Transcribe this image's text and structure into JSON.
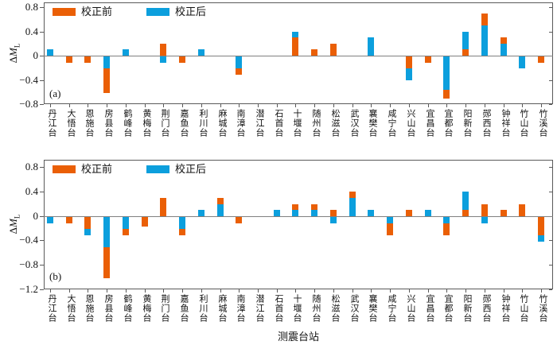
{
  "figure": {
    "xlabel": "测震台站",
    "ylabel": {
      "prefix": "Δ",
      "symbol": "M",
      "subscript": "L"
    },
    "legend": {
      "before_label": "校正前",
      "after_label": "校正后"
    },
    "colors": {
      "before": "#ea5f06",
      "after": "#0c9fdd",
      "axis": "#5a5a5a",
      "zero_line": "#808080"
    }
  },
  "chart_data": [
    {
      "type": "bar",
      "panel": "(a)",
      "ylabel": "ΔM_L",
      "ylim": [
        -0.8,
        0.88
      ],
      "grid": false,
      "legend_position": "top-left-inside",
      "yticks": [
        {
          "label": "0.8",
          "value": 0.8
        },
        {
          "label": "0.4",
          "value": 0.4
        },
        {
          "label": "0",
          "value": 0
        },
        {
          "label": "−0.4",
          "value": -0.4
        },
        {
          "label": "−0.8",
          "value": -0.8
        }
      ],
      "categories": [
        "丹江台",
        "大悟台",
        "恩施台",
        "房县台",
        "鹤峰台",
        "黄梅台",
        "荆门台",
        "嘉鱼台",
        "利川台",
        "麻城台",
        "南漳台",
        "潜江台",
        "石首台",
        "十堰台",
        "随州台",
        "松滋台",
        "武汉台",
        "襄樊台",
        "咸宁台",
        "兴山台",
        "宜昌台",
        "宜都台",
        "阳新台",
        "郧西台",
        "钟祥台",
        "竹山台",
        "竹溪台"
      ],
      "series": [
        {
          "name": "校正前",
          "color_key": "before",
          "values": [
            null,
            -0.1,
            -0.1,
            -0.6,
            null,
            null,
            0.2,
            -0.1,
            null,
            null,
            -0.3,
            null,
            null,
            0.3,
            0.1,
            0.2,
            null,
            null,
            null,
            -0.2,
            -0.1,
            -0.7,
            0.1,
            0.7,
            0.3,
            null,
            -0.1
          ]
        },
        {
          "name": "校正后",
          "color_key": "after",
          "values": [
            0.1,
            null,
            null,
            -0.2,
            0.1,
            null,
            -0.1,
            null,
            0.1,
            null,
            -0.2,
            null,
            null,
            0.4,
            null,
            null,
            null,
            0.3,
            null,
            -0.4,
            null,
            -0.55,
            0.4,
            0.5,
            0.2,
            -0.2,
            null
          ]
        }
      ]
    },
    {
      "type": "bar",
      "panel": "(b)",
      "ylabel": "ΔM_L",
      "ylim": [
        -1.2,
        0.92
      ],
      "grid": false,
      "legend_position": "top-left-inside",
      "yticks": [
        {
          "label": "0.8",
          "value": 0.8
        },
        {
          "label": "0.4",
          "value": 0.4
        },
        {
          "label": "0",
          "value": 0
        },
        {
          "label": "−0.4",
          "value": -0.4
        },
        {
          "label": "−0.8",
          "value": -0.8
        },
        {
          "label": "−1.2",
          "value": -1.2
        }
      ],
      "categories": [
        "丹江台",
        "大悟台",
        "恩施台",
        "房县台",
        "鹤峰台",
        "黄梅台",
        "荆门台",
        "嘉鱼台",
        "利川台",
        "麻城台",
        "南漳台",
        "潜江台",
        "石首台",
        "十堰台",
        "随州台",
        "松滋台",
        "武汉台",
        "襄樊台",
        "咸宁台",
        "兴山台",
        "宜昌台",
        "宜都台",
        "阳新台",
        "郧西台",
        "钟祥台",
        "竹山台",
        "竹溪台"
      ],
      "series": [
        {
          "name": "校正前",
          "color_key": "before",
          "values": [
            null,
            -0.1,
            -0.2,
            -1.0,
            -0.3,
            -0.15,
            0.3,
            -0.3,
            null,
            0.3,
            -0.1,
            null,
            null,
            0.2,
            0.2,
            0.1,
            0.4,
            null,
            -0.3,
            0.1,
            null,
            -0.3,
            0.1,
            0.2,
            0.1,
            0.2,
            -0.3
          ]
        },
        {
          "name": "校正后",
          "color_key": "after",
          "values": [
            -0.1,
            null,
            -0.3,
            -0.5,
            -0.2,
            null,
            null,
            -0.2,
            0.1,
            0.2,
            null,
            null,
            0.1,
            0.1,
            0.1,
            -0.1,
            0.3,
            0.1,
            -0.1,
            null,
            0.1,
            -0.1,
            0.4,
            -0.1,
            null,
            null,
            -0.4
          ]
        }
      ]
    }
  ]
}
